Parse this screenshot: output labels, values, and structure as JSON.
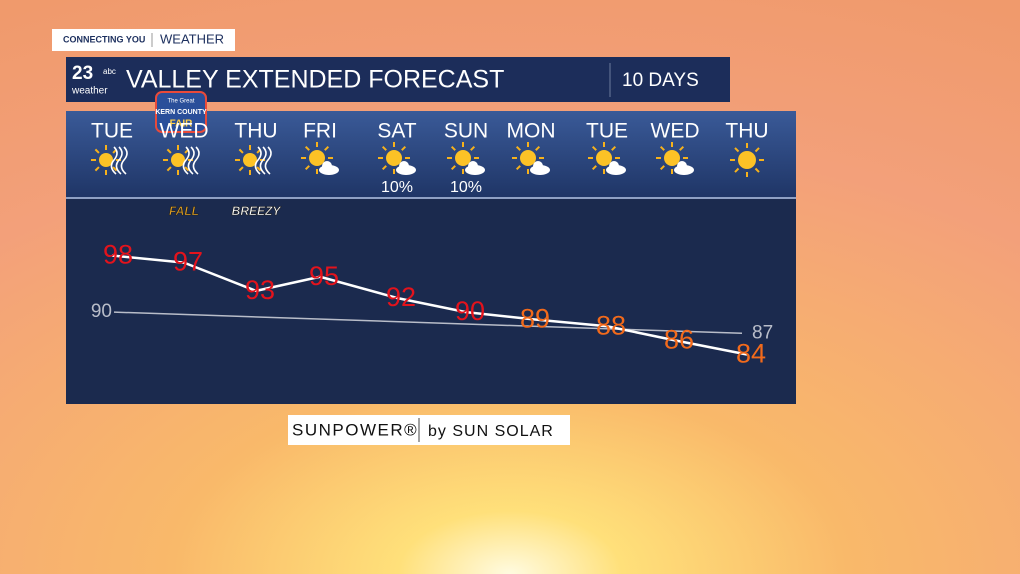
{
  "header": {
    "tag_left": "CONNECTING YOU",
    "tag_right": "WEATHER",
    "logo_number": "23",
    "logo_small": "abc",
    "logo_word": "weather",
    "title": "VALLEY EXTENDED FORECAST",
    "period": "10 DAYS"
  },
  "event_logo": {
    "top": "The Great",
    "middle": "KERN COUNTY",
    "bottom": "FAIR"
  },
  "sponsor": {
    "brand": "SUNPOWER®",
    "by": "by SUN SOLAR"
  },
  "chart_data": {
    "type": "line",
    "categories": [
      "TUE",
      "WED",
      "THU",
      "FRI",
      "SAT",
      "SUN",
      "MON",
      "TUE",
      "WED",
      "THU"
    ],
    "values": [
      98,
      97,
      93,
      95,
      92,
      90,
      89,
      88,
      86,
      84
    ],
    "color": "#ffffff",
    "label_colors": [
      "#e3131c",
      "#e3131c",
      "#e3131c",
      "#e3131c",
      "#e3131c",
      "#e3131c",
      "#f26a1b",
      "#f26a1b",
      "#f26a1b",
      "#f26a1b"
    ],
    "normal_line": {
      "color": "#b9bdc9",
      "values": [
        90,
        87
      ]
    },
    "precip": {
      "values": [
        null,
        null,
        null,
        null,
        10,
        10,
        null,
        null,
        null,
        null
      ],
      "value_labels": [
        null,
        null,
        null,
        null,
        "10%",
        "10%",
        null,
        null,
        null,
        null
      ]
    },
    "notes": [
      null,
      "FALL",
      "BREEZY",
      null,
      null,
      null,
      null,
      null,
      null,
      null
    ],
    "ylim": [
      77,
      106
    ]
  }
}
